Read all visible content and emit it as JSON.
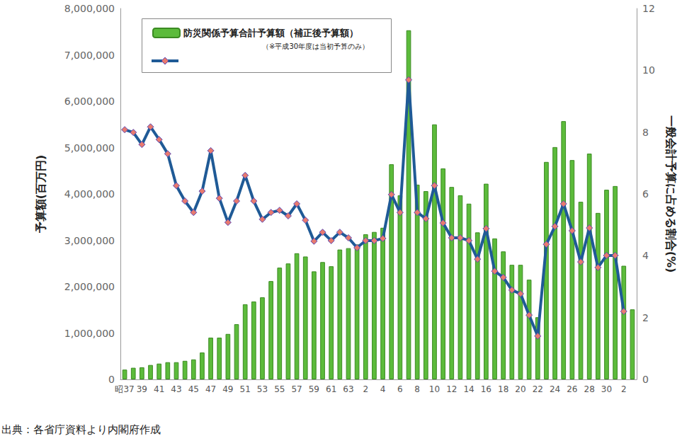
{
  "chart_data": {
    "type": "bar",
    "ylabel": "予算額(百万円)",
    "y2label": "一般会計予算に占める割合(%)",
    "legend": "upper left",
    "legend_note": "（※平成30年度は当初予算のみ）",
    "source": "出典：各省庁資料より内閣府作成",
    "grid": false,
    "categories": [
      "昭37",
      null,
      "39",
      null,
      "41",
      null,
      "43",
      null,
      "45",
      null,
      "47",
      null,
      "49",
      null,
      "51",
      null,
      "53",
      null,
      "55",
      null,
      "57",
      null,
      "59",
      null,
      "61",
      null,
      "63",
      null,
      "2",
      null,
      "4",
      null,
      "6",
      null,
      "8",
      null,
      "10",
      null,
      "12",
      null,
      "14",
      null,
      "16",
      null,
      "18",
      null,
      "20",
      null,
      "22",
      null,
      "24",
      null,
      "26",
      null,
      "28",
      null,
      "30",
      null,
      "2",
      null
    ],
    "series": [
      {
        "name": "防災関係予算合計予算額（補正後予算額）",
        "type": "bar",
        "color": "#5cbb3b",
        "values": [
          210000,
          250000,
          260000,
          310000,
          340000,
          370000,
          370000,
          400000,
          430000,
          580000,
          900000,
          900000,
          980000,
          1190000,
          1620000,
          1680000,
          1770000,
          2120000,
          2410000,
          2500000,
          2720000,
          2650000,
          2330000,
          2530000,
          2440000,
          2800000,
          2830000,
          2910000,
          3130000,
          3180000,
          3270000,
          4640000,
          3970000,
          7530000,
          4200000,
          4060000,
          5500000,
          4550000,
          4150000,
          3970000,
          3790000,
          3170000,
          4220000,
          3040000,
          2760000,
          2470000,
          2470000,
          2150000,
          1340000,
          4690000,
          5010000,
          5570000,
          4730000,
          3830000,
          4870000,
          3590000,
          4090000,
          4170000,
          2450000,
          1510000
        ]
      },
      {
        "type": "line",
        "axis": "y2",
        "color": "#1f5a96",
        "marker": "diamond",
        "values": [
          8.08,
          7.99,
          7.6,
          8.17,
          7.76,
          7.3,
          6.27,
          5.77,
          5.4,
          6.09,
          7.4,
          5.86,
          5.08,
          5.77,
          6.6,
          5.77,
          5.18,
          5.4,
          5.47,
          5.29,
          5.68,
          5.15,
          4.47,
          4.76,
          4.49,
          4.76,
          4.58,
          4.26,
          4.49,
          4.49,
          4.56,
          5.98,
          5.4,
          9.69,
          5.4,
          5.2,
          6.27,
          5.06,
          4.58,
          4.58,
          4.49,
          3.89,
          4.88,
          3.5,
          3.3,
          2.89,
          2.77,
          2.08,
          1.4,
          4.37,
          4.95,
          5.68,
          4.81,
          3.8,
          4.9,
          3.62,
          4.01,
          4.01,
          2.2,
          null
        ]
      }
    ],
    "ylim": [
      0,
      8000000
    ],
    "yticks": [
      0,
      {
        "value": 1000000,
        "label": "1,000,000"
      },
      {
        "value": 2000000,
        "label": "2,000,000"
      },
      {
        "value": 3000000,
        "label": "3,000,000"
      },
      {
        "value": 4000000,
        "label": "4,000,000"
      },
      {
        "value": 5000000,
        "label": "5,000,000"
      },
      {
        "value": 6000000,
        "label": "6,000,000"
      },
      {
        "value": 7000000,
        "label": "7,000,000"
      },
      {
        "value": 8000000,
        "label": "8,000,000"
      }
    ],
    "y2lim": [
      0,
      12
    ],
    "y2ticks": [
      0,
      2,
      4,
      6,
      8,
      10,
      12
    ]
  }
}
